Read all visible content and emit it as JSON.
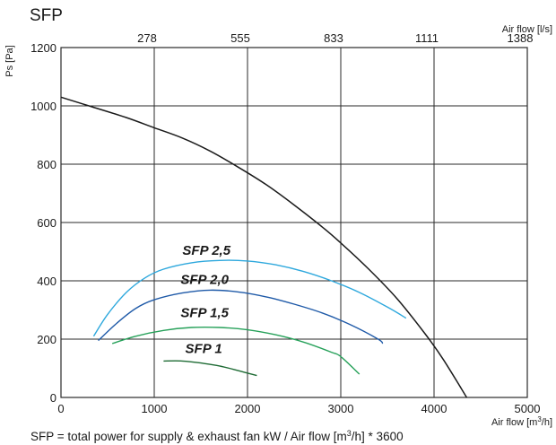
{
  "title": "SFP",
  "footer": {
    "text_before": "SFP = total power for supply & exhaust fan kW / Air flow [m",
    "sup1": "3",
    "text_after": "/h] * 3600"
  },
  "chart_data": {
    "type": "line",
    "title": "SFP",
    "xlabel": {
      "text": "Air flow [m",
      "sup": "3",
      "suffix": "/h]"
    },
    "ylabel": "Ps [Pa]",
    "x2label": "Air flow [l/s]",
    "xlim": [
      0,
      5000
    ],
    "ylim": [
      0,
      1200
    ],
    "xticks": [
      0,
      1000,
      2000,
      3000,
      4000,
      5000
    ],
    "yticks": [
      0,
      200,
      400,
      600,
      800,
      1000,
      1200
    ],
    "x2ticks": [
      {
        "at": 1000,
        "label": "278"
      },
      {
        "at": 2000,
        "label": "555"
      },
      {
        "at": 3000,
        "label": "833"
      },
      {
        "at": 4000,
        "label": "1111"
      },
      {
        "at": 5000,
        "label": "1388"
      }
    ],
    "grid": true,
    "fan_curve": {
      "color": "#1a1a1a",
      "points": [
        [
          0,
          1030
        ],
        [
          300,
          1000
        ],
        [
          700,
          960
        ],
        [
          1000,
          925
        ],
        [
          1300,
          890
        ],
        [
          1600,
          845
        ],
        [
          1900,
          790
        ],
        [
          2200,
          730
        ],
        [
          2500,
          660
        ],
        [
          2800,
          585
        ],
        [
          3000,
          530
        ],
        [
          3300,
          440
        ],
        [
          3600,
          340
        ],
        [
          3900,
          220
        ],
        [
          4100,
          130
        ],
        [
          4350,
          0
        ]
      ]
    },
    "series": [
      {
        "name": "SFP 2,5",
        "color": "#2ea8dd",
        "label_at": [
          1560,
          490
        ],
        "points": [
          [
            350,
            210
          ],
          [
            500,
            285
          ],
          [
            700,
            360
          ],
          [
            900,
            410
          ],
          [
            1100,
            440
          ],
          [
            1400,
            462
          ],
          [
            1700,
            470
          ],
          [
            2000,
            468
          ],
          [
            2300,
            455
          ],
          [
            2600,
            432
          ],
          [
            2900,
            400
          ],
          [
            3200,
            360
          ],
          [
            3500,
            310
          ],
          [
            3700,
            272
          ]
        ]
      },
      {
        "name": "SFP 2,0",
        "color": "#1f5aa8",
        "label_at": [
          1540,
          390
        ],
        "points": [
          [
            400,
            195
          ],
          [
            600,
            255
          ],
          [
            800,
            305
          ],
          [
            1000,
            335
          ],
          [
            1300,
            358
          ],
          [
            1600,
            368
          ],
          [
            1900,
            362
          ],
          [
            2200,
            345
          ],
          [
            2500,
            320
          ],
          [
            2800,
            290
          ],
          [
            3100,
            250
          ],
          [
            3400,
            200
          ],
          [
            3450,
            185
          ]
        ]
      },
      {
        "name": "SFP 1,5",
        "color": "#27a15a",
        "label_at": [
          1540,
          275
        ],
        "points": [
          [
            550,
            185
          ],
          [
            800,
            210
          ],
          [
            1100,
            230
          ],
          [
            1400,
            240
          ],
          [
            1700,
            240
          ],
          [
            2000,
            232
          ],
          [
            2300,
            215
          ],
          [
            2600,
            190
          ],
          [
            2900,
            155
          ],
          [
            3000,
            140
          ],
          [
            3200,
            80
          ]
        ]
      },
      {
        "name": "SFP 1",
        "color": "#1e6b34",
        "label_at": [
          1530,
          152
        ],
        "points": [
          [
            1100,
            125
          ],
          [
            1300,
            125
          ],
          [
            1500,
            118
          ],
          [
            1700,
            108
          ],
          [
            1900,
            92
          ],
          [
            2100,
            75
          ]
        ]
      }
    ]
  }
}
